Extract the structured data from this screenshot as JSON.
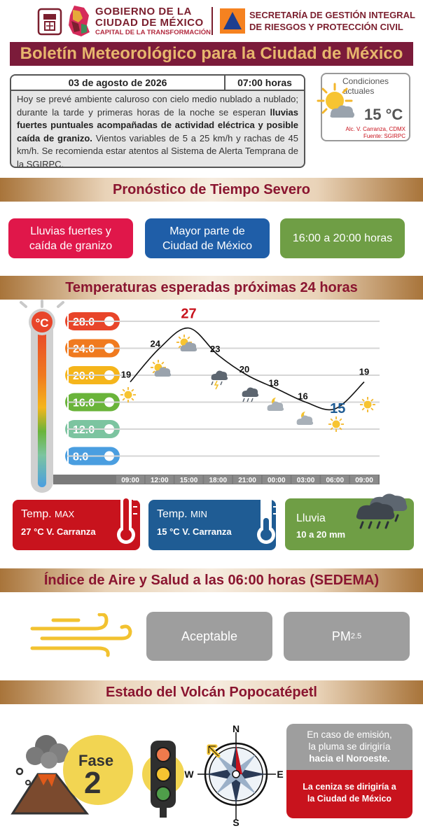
{
  "header": {
    "gov_line1": "GOBIERNO DE LA",
    "gov_line2": "CIUDAD DE MÉXICO",
    "gov_line3": "CAPITAL DE LA TRANSFORMACIÓN",
    "sec_line1": "SECRETARÍA DE GESTIÓN INTEGRAL",
    "sec_line2": "DE RIESGOS Y PROTECCIÓN CIVIL"
  },
  "title": "Boletín Meteorológico para la Ciudad de México",
  "bulletin": {
    "date": "03 de agosto de 2026",
    "time": "07:00 horas",
    "text_a": "Hoy se prevé ambiente caluroso con cielo medio nublado a nublado; durante la tarde y primeras horas de la noche se esperan ",
    "text_bold": "lluvias fuertes puntuales acompañadas de actividad eléctrica y posible caída de granizo.",
    "text_b": " Vientos variables de 5 a 25 km/h y rachas de 45 km/h. Se recomienda estar atentos al Sistema de Alerta Temprana de la SGIRPC."
  },
  "conditions": {
    "label_line1": "Condiciones",
    "label_line2": "actuales",
    "temp": "15 °C",
    "location": "Alc. V. Carranza, CDMX",
    "source": "Fuente: SGIRPC"
  },
  "severe": {
    "title": "Pronóstico de Tiempo Severo",
    "pill1": "Lluvias fuertes y caída de granizo",
    "pill2": "Mayor parte de Ciudad de México",
    "pill3": "16:00 a 20:00 horas",
    "colors": {
      "pill1": "#e0174a",
      "pill2": "#1f5ea8",
      "pill3": "#6f9e45"
    }
  },
  "temps": {
    "title": "Temperaturas esperadas próximas 24 horas",
    "unit_badge": "°C",
    "scale": [
      "28.0",
      "24.0",
      "20.0",
      "16.0",
      "12.0",
      "8.0"
    ],
    "scale_colors": [
      "#e8452a",
      "#f07a1f",
      "#f5b51b",
      "#6ab43a",
      "#7cc4a0",
      "#4a9ee0"
    ],
    "chart_data": {
      "type": "line",
      "categories": [
        "09:00",
        "12:00",
        "15:00",
        "18:00",
        "21:00",
        "00:00",
        "03:00",
        "06:00",
        "09:00"
      ],
      "values": [
        19,
        24,
        27,
        23,
        20,
        18,
        16,
        15,
        19
      ],
      "ylim": [
        8,
        28
      ],
      "max_label": "27",
      "min_label": "15",
      "icons": [
        "sun-icon",
        "sun-cloud-icon",
        "sun-cloud-icon",
        "storm-cloud-icon",
        "rain-cloud-icon",
        "moon-cloud-icon",
        "moon-cloud-icon",
        "sun-icon",
        "sun-icon"
      ]
    },
    "max_card": {
      "label": "Temp.",
      "label_small": "MAX",
      "value": "27  °C  V. Carranza",
      "color": "#c8131d"
    },
    "min_card": {
      "label": "Temp.",
      "label_small": "MIN",
      "value": "15 °C  V. Carranza",
      "color": "#1f5c94"
    },
    "rain_card": {
      "label": "Lluvia",
      "value": "10 a 20 mm",
      "color": "#6f9e45"
    }
  },
  "air": {
    "title": "Índice de Aire y Salud a las 06:00 horas (SEDEMA)",
    "status": "Aceptable",
    "pollutant": "PM",
    "pollutant_sub": "2.5"
  },
  "volcano": {
    "title": "Estado del Volcán Popocatépetl",
    "phase_label": "Fase",
    "phase_number": "2",
    "compass_n": "N",
    "compass_s": "S",
    "compass_e": "E",
    "compass_w": "W",
    "emission_line1": "En caso de emisión,",
    "emission_line2": "la pluma se dirigiría",
    "emission_bold": "hacia el Noroeste.",
    "ash_line1": "La ceniza se dirigiría a",
    "ash_line2": "la Ciudad de México"
  }
}
